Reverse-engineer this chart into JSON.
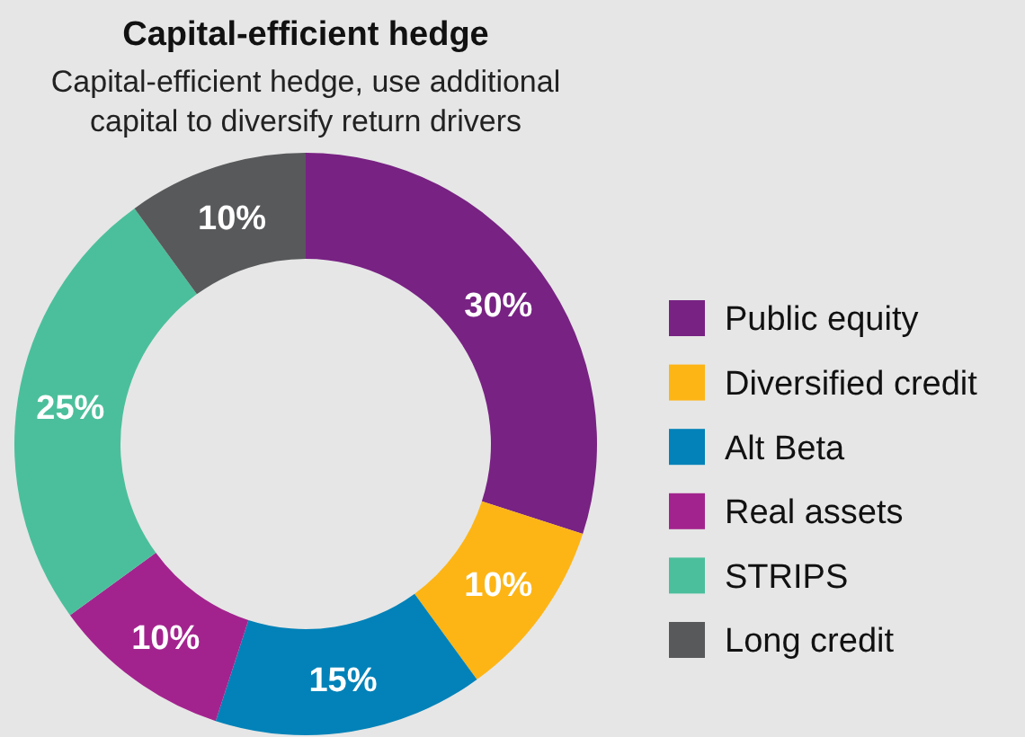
{
  "chart_data": {
    "type": "donut",
    "title": "Capital-efficient hedge",
    "subtitle": "Capital-efficient hedge, use additional capital to diversify return drivers",
    "categories": [
      "Public equity",
      "Diversified credit",
      "Alt Beta",
      "Real assets",
      "STRIPS",
      "Long credit"
    ],
    "values": [
      30,
      10,
      15,
      10,
      25,
      10
    ],
    "colors": [
      "#782283",
      "#fdb515",
      "#0282b8",
      "#a3238e",
      "#4bbf9b",
      "#58595b"
    ],
    "value_labels": [
      "30%",
      "10%",
      "15%",
      "10%",
      "25%",
      "10%"
    ],
    "legend": "right"
  }
}
